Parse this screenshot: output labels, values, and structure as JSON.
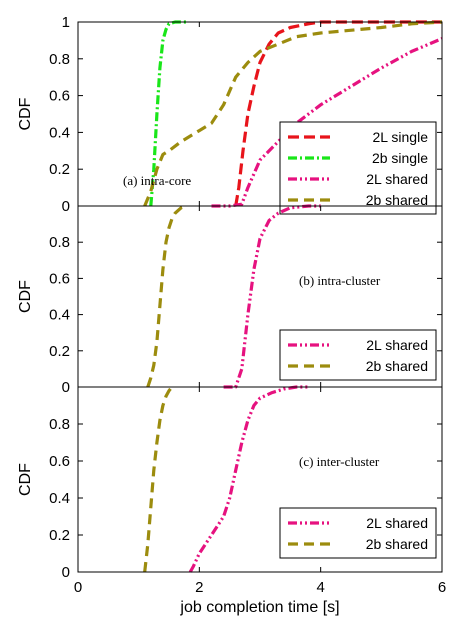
{
  "chart_data": [
    {
      "type": "line",
      "annotation": "(a) intra-core",
      "ylabel": "CDF",
      "xlim": [
        0,
        6
      ],
      "ylim": [
        0,
        1
      ],
      "yticks": [
        "0",
        "0.2",
        "0.4",
        "0.6",
        "0.8",
        "1"
      ],
      "legend_position": "lower-right",
      "series": [
        {
          "name": "2L single",
          "color": "#e8141b",
          "dash": "long",
          "x": [
            2.6,
            2.65,
            2.72,
            2.8,
            2.9,
            3.0,
            3.15,
            3.3,
            3.5,
            3.8,
            4.0,
            4.2,
            6.0
          ],
          "y": [
            0,
            0.1,
            0.3,
            0.5,
            0.65,
            0.78,
            0.88,
            0.94,
            0.97,
            0.99,
            1.0,
            1.0,
            1.0
          ]
        },
        {
          "name": "2b single",
          "color": "#19e619",
          "dash": "dashdot",
          "x": [
            1.2,
            1.25,
            1.3,
            1.35,
            1.4,
            1.45,
            1.5,
            1.6,
            1.8
          ],
          "y": [
            0,
            0.2,
            0.5,
            0.75,
            0.9,
            0.96,
            0.99,
            1.0,
            1.0
          ]
        },
        {
          "name": "2L shared",
          "color": "#e6127f",
          "dash": "dashdotdot",
          "x": [
            2.2,
            2.5,
            2.7,
            2.8,
            3.0,
            3.3,
            3.6,
            4.0,
            4.5,
            5.0,
            5.5,
            6.0
          ],
          "y": [
            0,
            0.0,
            0.01,
            0.1,
            0.25,
            0.35,
            0.45,
            0.55,
            0.65,
            0.75,
            0.84,
            0.91
          ]
        },
        {
          "name": "2b shared",
          "color": "#9c8c0e",
          "dash": "dashed",
          "x": [
            1.1,
            1.2,
            1.3,
            1.4,
            1.5,
            1.7,
            2.0,
            2.2,
            2.4,
            2.6,
            2.8,
            3.0,
            3.3,
            3.6,
            4.0,
            5.0,
            5.5,
            6.0
          ],
          "y": [
            0,
            0.08,
            0.2,
            0.28,
            0.3,
            0.35,
            0.41,
            0.45,
            0.55,
            0.7,
            0.78,
            0.84,
            0.88,
            0.92,
            0.94,
            0.97,
            0.99,
            1.0
          ]
        }
      ]
    },
    {
      "type": "line",
      "annotation": "(b) intra-cluster",
      "ylabel": "CDF",
      "xlim": [
        0,
        6
      ],
      "ylim": [
        0,
        1
      ],
      "yticks": [
        "0",
        "0.2",
        "0.4",
        "0.6",
        "0.8",
        ""
      ],
      "legend_position": "lower-right",
      "series": [
        {
          "name": "2L shared",
          "color": "#e6127f",
          "dash": "dashdotdot",
          "x": [
            2.4,
            2.6,
            2.7,
            2.8,
            2.9,
            3.0,
            3.15,
            3.3,
            3.5,
            3.8,
            4.0
          ],
          "y": [
            0,
            0.0,
            0.1,
            0.4,
            0.65,
            0.82,
            0.92,
            0.96,
            0.99,
            1.0,
            1.0
          ]
        },
        {
          "name": "2b shared",
          "color": "#9c8c0e",
          "dash": "dashed",
          "x": [
            1.15,
            1.2,
            1.25,
            1.3,
            1.35,
            1.4,
            1.45,
            1.5,
            1.55,
            1.6,
            1.7,
            1.8
          ],
          "y": [
            0,
            0.05,
            0.12,
            0.25,
            0.45,
            0.65,
            0.8,
            0.88,
            0.93,
            0.96,
            0.99,
            1.0
          ]
        }
      ]
    },
    {
      "type": "line",
      "annotation": "(c) inter-cluster",
      "ylabel": "CDF",
      "xlabel": "job completion time [s]",
      "xlim": [
        0,
        6
      ],
      "ylim": [
        0,
        1
      ],
      "yticks": [
        "0",
        "0.2",
        "0.4",
        "0.6",
        "0.8",
        ""
      ],
      "xticks": [
        "0",
        "2",
        "4",
        "6"
      ],
      "legend_position": "lower-right",
      "series": [
        {
          "name": "2L shared",
          "color": "#e6127f",
          "dash": "dashdotdot",
          "x": [
            1.85,
            1.9,
            2.0,
            2.2,
            2.4,
            2.5,
            2.6,
            2.7,
            2.8,
            2.9,
            3.0,
            3.2,
            3.4,
            3.6,
            3.8
          ],
          "y": [
            0,
            0.03,
            0.1,
            0.2,
            0.3,
            0.4,
            0.55,
            0.7,
            0.82,
            0.9,
            0.94,
            0.97,
            0.99,
            1.0,
            1.0
          ]
        },
        {
          "name": "2b shared",
          "color": "#9c8c0e",
          "dash": "dashed",
          "x": [
            1.1,
            1.15,
            1.2,
            1.25,
            1.3,
            1.35,
            1.4,
            1.45,
            1.5,
            1.55,
            1.6
          ],
          "y": [
            0,
            0.15,
            0.35,
            0.55,
            0.7,
            0.82,
            0.9,
            0.95,
            0.98,
            1.0,
            1.0
          ]
        }
      ]
    }
  ]
}
